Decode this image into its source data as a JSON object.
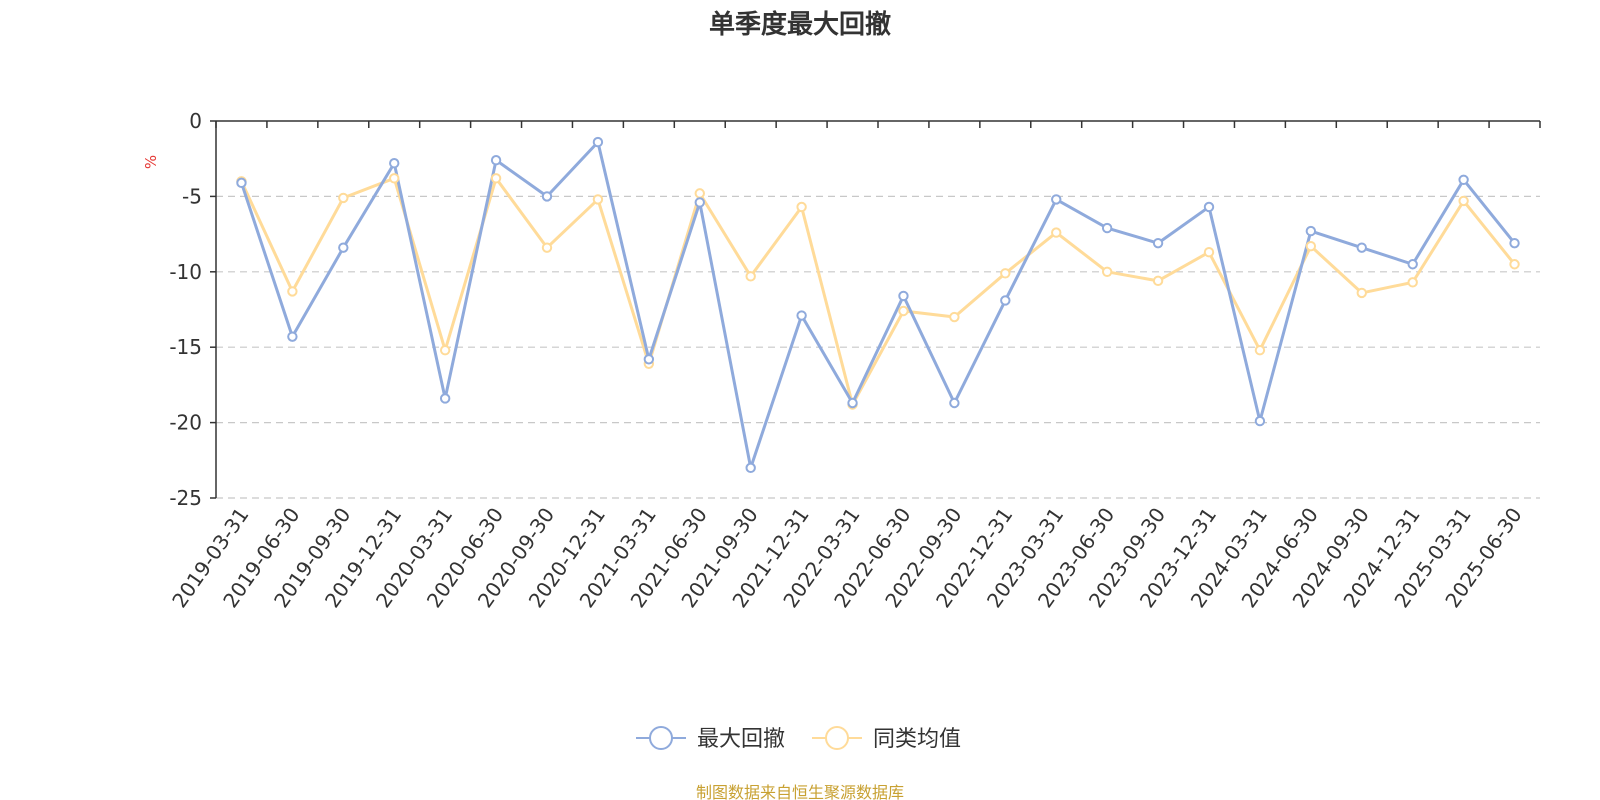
{
  "chart_data": {
    "type": "line",
    "title": "单季度最大回撤",
    "ylabel": "%",
    "xlabel": "",
    "ylim": [
      -25,
      0
    ],
    "yticks": [
      0,
      -5,
      -10,
      -15,
      -20,
      -25
    ],
    "grid": true,
    "legend_position": "bottom",
    "categories": [
      "2019-03-31",
      "2019-06-30",
      "2019-09-30",
      "2019-12-31",
      "2020-03-31",
      "2020-06-30",
      "2020-09-30",
      "2020-12-31",
      "2021-03-31",
      "2021-06-30",
      "2021-09-30",
      "2021-12-31",
      "2022-03-31",
      "2022-06-30",
      "2022-09-30",
      "2022-12-31",
      "2023-03-31",
      "2023-06-30",
      "2023-09-30",
      "2023-12-31",
      "2024-03-31",
      "2024-06-30",
      "2024-09-30",
      "2024-12-31",
      "2025-03-31",
      "2025-06-30"
    ],
    "series": [
      {
        "name": "最大回撤",
        "color": "#8FAADC",
        "values": [
          -4.1,
          -14.3,
          -8.4,
          -2.8,
          -18.4,
          -2.6,
          -5.0,
          -1.4,
          -15.8,
          -5.4,
          -23.0,
          -12.9,
          -18.7,
          -11.6,
          -18.7,
          -11.9,
          -5.2,
          -7.1,
          -8.1,
          -5.7,
          -19.9,
          -7.3,
          -8.4,
          -9.5,
          -3.9,
          -8.1
        ]
      },
      {
        "name": "同类均值",
        "color": "#FFDB99",
        "values": [
          -4.0,
          -11.3,
          -5.1,
          -3.8,
          -15.2,
          -3.8,
          -8.4,
          -5.2,
          -16.1,
          -4.8,
          -10.3,
          -5.7,
          -18.8,
          -12.6,
          -13.0,
          -10.1,
          -7.4,
          -10.0,
          -10.6,
          -8.7,
          -15.2,
          -8.3,
          -11.4,
          -10.7,
          -5.3,
          -9.5
        ]
      }
    ]
  },
  "source": {
    "text": "制图数据来自恒生聚源数据库",
    "color": "#C8A132"
  },
  "colors": {
    "axis": "#333333",
    "grid": "#C8C8C8",
    "unit": "#E53935"
  }
}
